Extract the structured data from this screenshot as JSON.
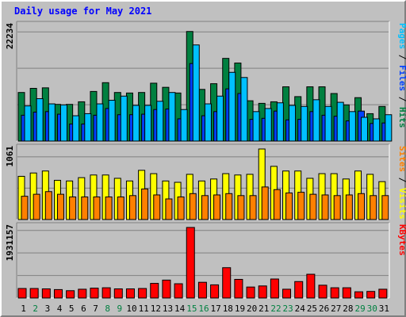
{
  "chart_data": [
    {
      "title": "Daily usage for May 2021",
      "type": "bar",
      "panel": "hits-files-pages",
      "y_max_label": "22234",
      "grid": true,
      "legend": [
        {
          "name": "Hits",
          "color": "#008040"
        },
        {
          "name": "Files",
          "color": "#0040ff"
        },
        {
          "name": "Pages",
          "color": "#00c0ff"
        }
      ],
      "categories": [
        "1",
        "2",
        "3",
        "4",
        "5",
        "6",
        "7",
        "8",
        "9",
        "10",
        "11",
        "12",
        "13",
        "14",
        "15",
        "16",
        "17",
        "18",
        "19",
        "20",
        "21",
        "22",
        "23",
        "24",
        "25",
        "26",
        "27",
        "28",
        "29",
        "30",
        "31"
      ],
      "series": [
        {
          "name": "Hits",
          "color": "#008040",
          "values": [
            9400,
            10200,
            10300,
            7100,
            7100,
            7600,
            9600,
            11300,
            9400,
            9300,
            9400,
            11200,
            10400,
            9300,
            21200,
            10000,
            11100,
            16000,
            15100,
            7800,
            7300,
            7600,
            10500,
            8600,
            10500,
            10500,
            9200,
            7000,
            8400,
            5300,
            6700
          ]
        },
        {
          "name": "Files",
          "color": "#0040ff",
          "values": [
            5000,
            5600,
            5700,
            5200,
            3300,
            3300,
            5000,
            6300,
            5100,
            5100,
            5200,
            6100,
            6200,
            4300,
            15000,
            4900,
            5700,
            10100,
            9200,
            4200,
            4400,
            5800,
            4100,
            4200,
            5700,
            5000,
            4800,
            3900,
            5800,
            3400,
            3500
          ]
        },
        {
          "name": "Pages",
          "color": "#00c0ff",
          "values": [
            6800,
            8200,
            7200,
            7000,
            4900,
            5300,
            7200,
            7900,
            8700,
            6900,
            6900,
            7700,
            9400,
            6100,
            18600,
            7200,
            8700,
            13300,
            12300,
            5700,
            6300,
            7400,
            6900,
            6700,
            8000,
            6700,
            7500,
            5700,
            4600,
            4300,
            5100
          ]
        }
      ]
    },
    {
      "type": "bar",
      "panel": "visits-sites",
      "y_max_label": "1061",
      "grid": true,
      "legend": [
        {
          "name": "Visits",
          "color": "#ffff00"
        },
        {
          "name": "Sites",
          "color": "#ff8000"
        }
      ],
      "categories": [
        "1",
        "2",
        "3",
        "4",
        "5",
        "6",
        "7",
        "8",
        "9",
        "10",
        "11",
        "12",
        "13",
        "14",
        "15",
        "16",
        "17",
        "18",
        "19",
        "20",
        "21",
        "22",
        "23",
        "24",
        "25",
        "26",
        "27",
        "28",
        "29",
        "30",
        "31"
      ],
      "series": [
        {
          "name": "Visits",
          "color": "#ffff00",
          "values": [
            650,
            700,
            730,
            590,
            580,
            630,
            670,
            670,
            620,
            580,
            740,
            690,
            580,
            560,
            680,
            580,
            610,
            690,
            670,
            680,
            1061,
            800,
            730,
            730,
            620,
            690,
            690,
            610,
            730,
            680,
            570
          ]
        },
        {
          "name": "Sites",
          "color": "#ff8000",
          "values": [
            350,
            380,
            420,
            380,
            340,
            340,
            340,
            340,
            340,
            360,
            460,
            370,
            310,
            340,
            390,
            360,
            370,
            390,
            360,
            360,
            490,
            450,
            400,
            410,
            380,
            370,
            360,
            370,
            390,
            360,
            360
          ]
        }
      ]
    },
    {
      "type": "bar",
      "panel": "kbytes",
      "y_max_label": "1931157",
      "grid": true,
      "legend": [
        {
          "name": "KBytes",
          "color": "#ff0000"
        }
      ],
      "categories": [
        "1",
        "2",
        "3",
        "4",
        "5",
        "6",
        "7",
        "8",
        "9",
        "10",
        "11",
        "12",
        "13",
        "14",
        "15",
        "16",
        "17",
        "18",
        "19",
        "20",
        "21",
        "22",
        "23",
        "24",
        "25",
        "26",
        "27",
        "28",
        "29",
        "30",
        "31"
      ],
      "series": [
        {
          "name": "KBytes",
          "color": "#ff0000",
          "values": [
            260000,
            260000,
            250000,
            230000,
            200000,
            240000,
            270000,
            280000,
            250000,
            250000,
            260000,
            400000,
            490000,
            390000,
            1931157,
            430000,
            360000,
            830000,
            510000,
            300000,
            330000,
            520000,
            240000,
            450000,
            650000,
            350000,
            280000,
            280000,
            170000,
            180000,
            240000
          ]
        }
      ]
    }
  ],
  "weekend_days": [
    "2",
    "8",
    "9",
    "15",
    "16",
    "22",
    "23",
    "29",
    "30"
  ],
  "weekend_color": "#008040",
  "weekday_color": "#000000",
  "axis_color": "#000000"
}
